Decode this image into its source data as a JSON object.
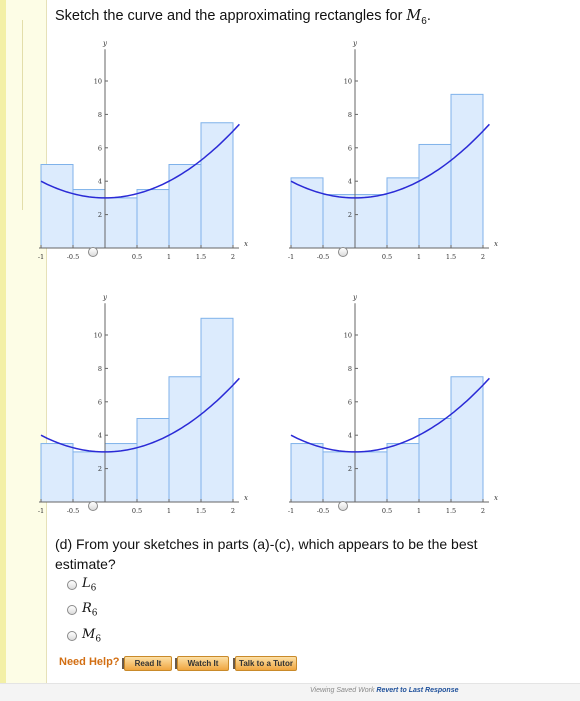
{
  "heading": {
    "prefix": "Sketch the curve and the approximating rectangles for ",
    "var_letter": "M",
    "var_sub": "6",
    "suffix": "."
  },
  "plots": [
    {
      "id": "a",
      "tops": [
        5,
        3.5,
        3,
        3.5,
        5,
        7.5
      ]
    },
    {
      "id": "b",
      "tops": [
        4.2,
        3.2,
        3.2,
        4.2,
        6.2,
        9.2
      ]
    },
    {
      "id": "c",
      "tops": [
        3.5,
        3,
        3.5,
        5,
        7.5,
        11
      ]
    },
    {
      "id": "d",
      "tops": [
        3.5,
        3,
        3,
        3.5,
        5,
        7.5
      ]
    }
  ],
  "axes": {
    "x_ticks": [
      "-1",
      "-0.5",
      "0.5",
      "1",
      "1.5",
      "2"
    ],
    "x_tick_values": [
      -1,
      -0.5,
      0.5,
      1,
      1.5,
      2
    ],
    "y_ticks": [
      "2",
      "4",
      "6",
      "8",
      "10"
    ],
    "y_tick_values": [
      2,
      4,
      6,
      8,
      10
    ],
    "x_label": "x",
    "y_label": "y",
    "x_range": [
      -1,
      2
    ],
    "y_range": [
      0,
      11.5
    ]
  },
  "question": {
    "text": "(d) From your sketches in parts (a)-(c), which appears to be the best estimate?"
  },
  "choices": [
    {
      "letter": "L",
      "sub": "6"
    },
    {
      "letter": "R",
      "sub": "6"
    },
    {
      "letter": "M",
      "sub": "6"
    }
  ],
  "help": {
    "label": "Need Help?",
    "buttons": [
      "Read It",
      "Watch It",
      "Talk to a Tutor"
    ]
  },
  "footer": {
    "prefix": "Viewing Saved Work ",
    "link": "Revert to Last Response"
  },
  "colors": {
    "curve": "#2a2ad6",
    "rect_fill": "#dcebfd",
    "rect_stroke": "#7fb2ea"
  }
}
